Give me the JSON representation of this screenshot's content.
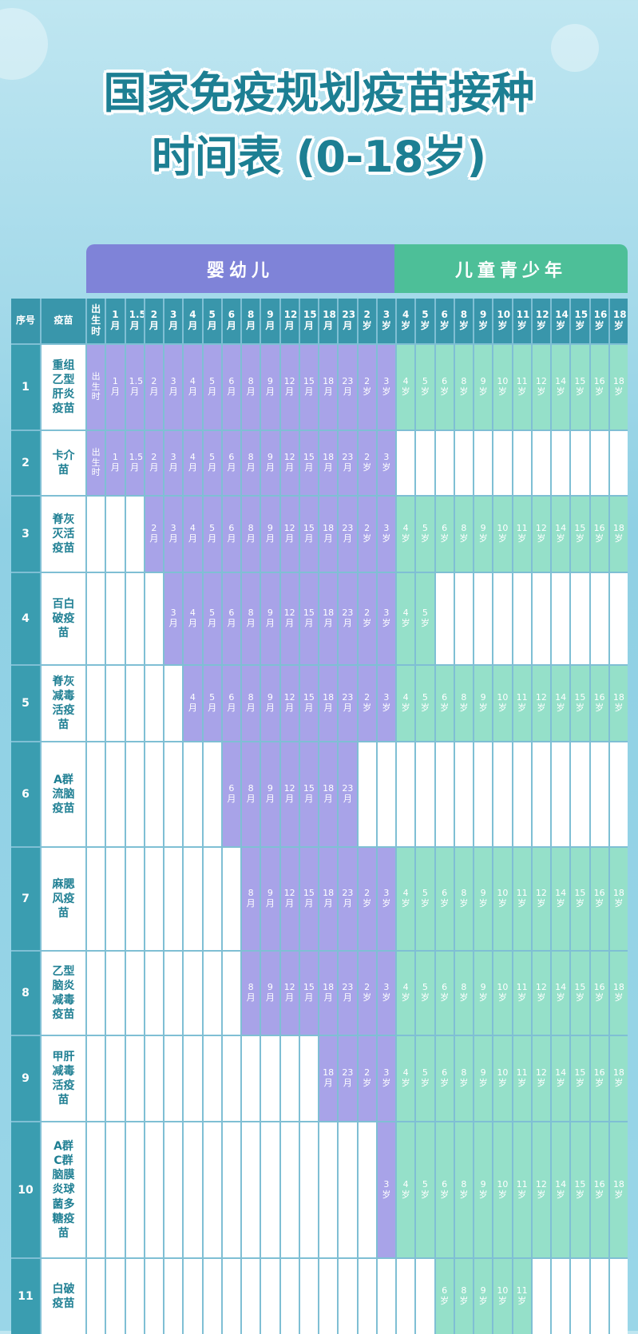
{
  "header": {
    "title_lines": [
      "国家免疫规划疫苗接种",
      "时间表 (0-18岁)"
    ]
  },
  "table": {
    "head": [
      "序号",
      "疫苗"
    ],
    "groups": [
      {
        "label": "婴幼儿",
        "columns": [
          "出生时",
          "1月",
          "1.5月",
          "2月",
          "3月",
          "4月",
          "5月",
          "6月",
          "8月",
          "9月",
          "12月",
          "15月",
          "18月",
          "23月",
          "2岁",
          "3岁"
        ]
      },
      {
        "label": "儿童青少年",
        "columns": [
          "4岁",
          "5岁",
          "6岁",
          "8岁",
          "9岁",
          "10岁",
          "11岁",
          "12岁",
          "14岁",
          "15岁",
          "16岁",
          "18岁"
        ]
      }
    ],
    "rows": [
      {
        "no": "1",
        "name": "重组乙型肝炎疫苗",
        "cells": [
          "出生时",
          "1月",
          "1.5月",
          "2月",
          "3月",
          "4月",
          "5月",
          "6月",
          "8月",
          "9月",
          "12月",
          "15月",
          "18月",
          "23月",
          "2岁",
          "3岁",
          "4岁",
          "5岁",
          "6岁",
          "8岁",
          "9岁",
          "10岁",
          "11岁",
          "12岁",
          "14岁",
          "15岁",
          "16岁",
          "18岁"
        ]
      },
      {
        "no": "2",
        "name": "卡介苗",
        "cells": [
          "出生时",
          "1月",
          "1.5月",
          "2月",
          "3月",
          "4月",
          "5月",
          "6月",
          "8月",
          "9月",
          "12月",
          "15月",
          "18月",
          "23月",
          "2岁",
          "3岁",
          null,
          null,
          null,
          null,
          null,
          null,
          null,
          null,
          null,
          null,
          null,
          null
        ]
      },
      {
        "no": "3",
        "name": "脊灰灭活疫苗",
        "cells": [
          null,
          null,
          null,
          "2月",
          "3月",
          "4月",
          "5月",
          "6月",
          "8月",
          "9月",
          "12月",
          "15月",
          "18月",
          "23月",
          "2岁",
          "3岁",
          "4岁",
          "5岁",
          "6岁",
          "8岁",
          "9岁",
          "10岁",
          "11岁",
          "12岁",
          "14岁",
          "15岁",
          "16岁",
          "18岁"
        ]
      },
      {
        "no": "4",
        "name": "百白破疫苗",
        "cells": [
          null,
          null,
          null,
          null,
          "3月",
          "4月",
          "5月",
          "6月",
          "8月",
          "9月",
          "12月",
          "15月",
          "18月",
          "23月",
          "2岁",
          "3岁",
          "4岁",
          "5岁",
          null,
          null,
          null,
          null,
          null,
          null,
          null,
          null,
          null,
          null
        ]
      },
      {
        "no": "5",
        "name": "脊灰减毒活疫苗",
        "cells": [
          null,
          null,
          null,
          null,
          null,
          "4月",
          "5月",
          "6月",
          "8月",
          "9月",
          "12月",
          "15月",
          "18月",
          "23月",
          "2岁",
          "3岁",
          "4岁",
          "5岁",
          "6岁",
          "8岁",
          "9岁",
          "10岁",
          "11岁",
          "12岁",
          "14岁",
          "15岁",
          "16岁",
          "18岁"
        ]
      },
      {
        "no": "6",
        "name": "A群流脑疫苗",
        "cells": [
          null,
          null,
          null,
          null,
          null,
          null,
          null,
          "6月",
          "8月",
          "9月",
          "12月",
          "15月",
          "18月",
          "23月",
          null,
          null,
          null,
          null,
          null,
          null,
          null,
          null,
          null,
          null,
          null,
          null,
          null,
          null
        ]
      },
      {
        "no": "7",
        "name": "麻腮风疫苗",
        "cells": [
          null,
          null,
          null,
          null,
          null,
          null,
          null,
          null,
          "8月",
          "9月",
          "12月",
          "15月",
          "18月",
          "23月",
          "2岁",
          "3岁",
          "4岁",
          "5岁",
          "6岁",
          "8岁",
          "9岁",
          "10岁",
          "11岁",
          "12岁",
          "14岁",
          "15岁",
          "16岁",
          "18岁"
        ]
      },
      {
        "no": "8",
        "name": "乙型脑炎减毒疫苗",
        "cells": [
          null,
          null,
          null,
          null,
          null,
          null,
          null,
          null,
          "8月",
          "9月",
          "12月",
          "15月",
          "18月",
          "23月",
          "2岁",
          "3岁",
          "4岁",
          "5岁",
          "6岁",
          "8岁",
          "9岁",
          "10岁",
          "11岁",
          "12岁",
          "14岁",
          "15岁",
          "16岁",
          "18岁"
        ]
      },
      {
        "no": "9",
        "name": "甲肝减毒活疫苗",
        "cells": [
          null,
          null,
          null,
          null,
          null,
          null,
          null,
          null,
          null,
          null,
          null,
          null,
          "18月",
          "23月",
          "2岁",
          "3岁",
          "4岁",
          "5岁",
          "6岁",
          "8岁",
          "9岁",
          "10岁",
          "11岁",
          "12岁",
          "14岁",
          "15岁",
          "16岁",
          "18岁"
        ]
      },
      {
        "no": "10",
        "name": "A群C群脑膜炎球菌多糖疫苗",
        "cells": [
          null,
          null,
          null,
          null,
          null,
          null,
          null,
          null,
          null,
          null,
          null,
          null,
          null,
          null,
          null,
          "3岁",
          "4岁",
          "5岁",
          "6岁",
          "8岁",
          "9岁",
          "10岁",
          "11岁",
          "12岁",
          "14岁",
          "15岁",
          "16岁",
          "18岁"
        ]
      },
      {
        "no": "11",
        "name": "白破疫苗",
        "cells": [
          null,
          null,
          null,
          null,
          null,
          null,
          null,
          null,
          null,
          null,
          null,
          null,
          null,
          null,
          null,
          null,
          null,
          null,
          "6岁",
          "8岁",
          "9岁",
          "10岁",
          "11岁",
          null,
          null,
          null,
          null,
          null
        ]
      }
    ]
  }
}
